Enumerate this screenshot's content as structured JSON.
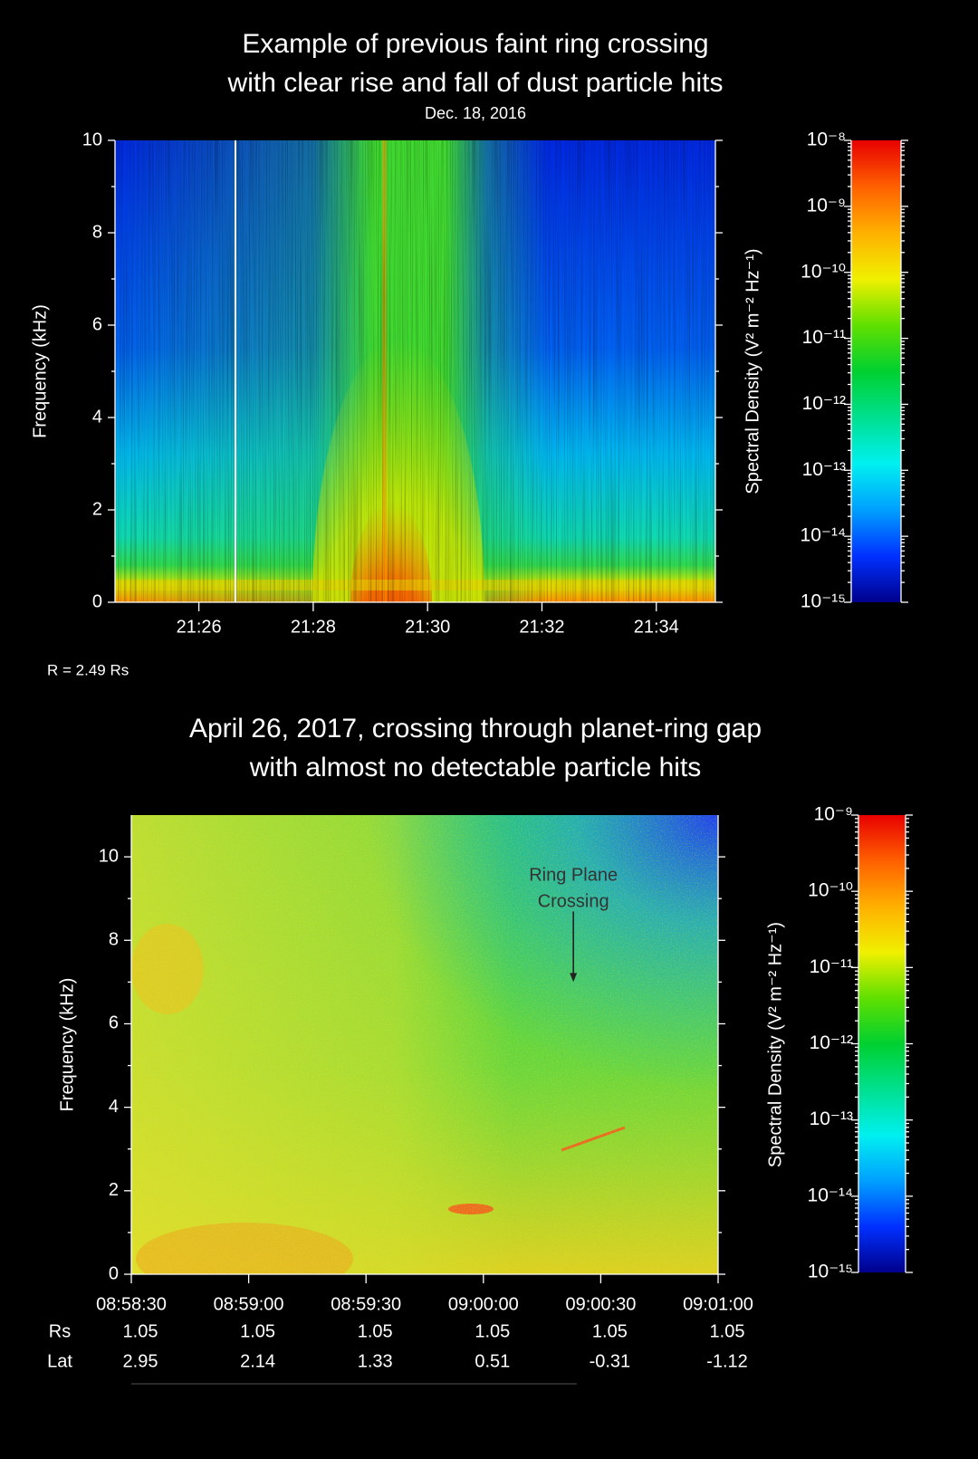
{
  "chart_data": [
    {
      "type": "spectrogram",
      "title": [
        "Example of previous faint ring crossing",
        "with clear rise and fall of dust particle hits"
      ],
      "subtitle": "Dec. 18, 2016",
      "ylabel": "Frequency (kHz)",
      "ylim": [
        0,
        10
      ],
      "yticks": [
        0,
        2,
        4,
        6,
        8,
        10
      ],
      "xlim": [
        "21:24:32",
        "21:35:02"
      ],
      "xticks": [
        "21:26",
        "21:28",
        "21:30",
        "21:32",
        "21:34"
      ],
      "note": "R = 2.49 Rs",
      "colorbar": {
        "label": "Spectral Density (V² m⁻² Hz⁻¹)",
        "log": true,
        "lim": [
          1e-15,
          1e-08
        ],
        "ticks": [
          {
            "value": 1e-08,
            "label": "10⁻⁸"
          },
          {
            "value": 1e-09,
            "label": "10⁻⁹"
          },
          {
            "value": 1e-10,
            "label": "10⁻¹⁰"
          },
          {
            "value": 1e-11,
            "label": "10⁻¹¹"
          },
          {
            "value": 1e-12,
            "label": "10⁻¹²"
          },
          {
            "value": 1e-13,
            "label": "10⁻¹³"
          },
          {
            "value": 1e-14,
            "label": "10⁻¹⁴"
          },
          {
            "value": 1e-15,
            "label": "10⁻¹⁵"
          }
        ],
        "colors": [
          "#00008c",
          "#0030ff",
          "#00a0ff",
          "#00f0f0",
          "#00e090",
          "#00d030",
          "#60e000",
          "#f0f000",
          "#ffb000",
          "#ff6000",
          "#e80000"
        ]
      }
    },
    {
      "type": "spectrogram",
      "title": [
        "April 26, 2017, crossing through planet-ring gap",
        "with almost no detectable particle hits"
      ],
      "ylabel": "Frequency (kHz)",
      "ylim": [
        0,
        11
      ],
      "yticks": [
        0,
        2,
        4,
        6,
        8,
        10
      ],
      "xlim": [
        "08:58:30",
        "09:01:00"
      ],
      "xticks": [
        "08:58:30",
        "08:59:00",
        "08:59:30",
        "09:00:00",
        "09:00:30",
        "09:01:00"
      ],
      "annotation": {
        "lines": [
          "Ring Plane",
          "Crossing"
        ],
        "x": "09:00:23",
        "y": 7
      },
      "table": {
        "rows": [
          {
            "label": "Rs",
            "values": [
              1.05,
              1.05,
              1.05,
              1.05,
              1.05,
              1.05
            ]
          },
          {
            "label": "Lat",
            "values": [
              2.95,
              2.14,
              1.33,
              0.51,
              -0.31,
              -1.12
            ]
          }
        ]
      },
      "colorbar": {
        "label": "Spectral Density (V² m⁻² Hz⁻¹)",
        "log": true,
        "lim": [
          1e-15,
          1e-09
        ],
        "ticks": [
          {
            "value": 1e-09,
            "label": "10⁻⁹"
          },
          {
            "value": 1e-10,
            "label": "10⁻¹⁰"
          },
          {
            "value": 1e-11,
            "label": "10⁻¹¹"
          },
          {
            "value": 1e-12,
            "label": "10⁻¹²"
          },
          {
            "value": 1e-13,
            "label": "10⁻¹³"
          },
          {
            "value": 1e-14,
            "label": "10⁻¹⁴"
          },
          {
            "value": 1e-15,
            "label": "10⁻¹⁵"
          }
        ],
        "colors": [
          "#00008c",
          "#0030ff",
          "#00a0ff",
          "#00f0f0",
          "#00e090",
          "#00d030",
          "#60e000",
          "#f0f000",
          "#ffb000",
          "#ff6000",
          "#e80000"
        ]
      }
    }
  ]
}
